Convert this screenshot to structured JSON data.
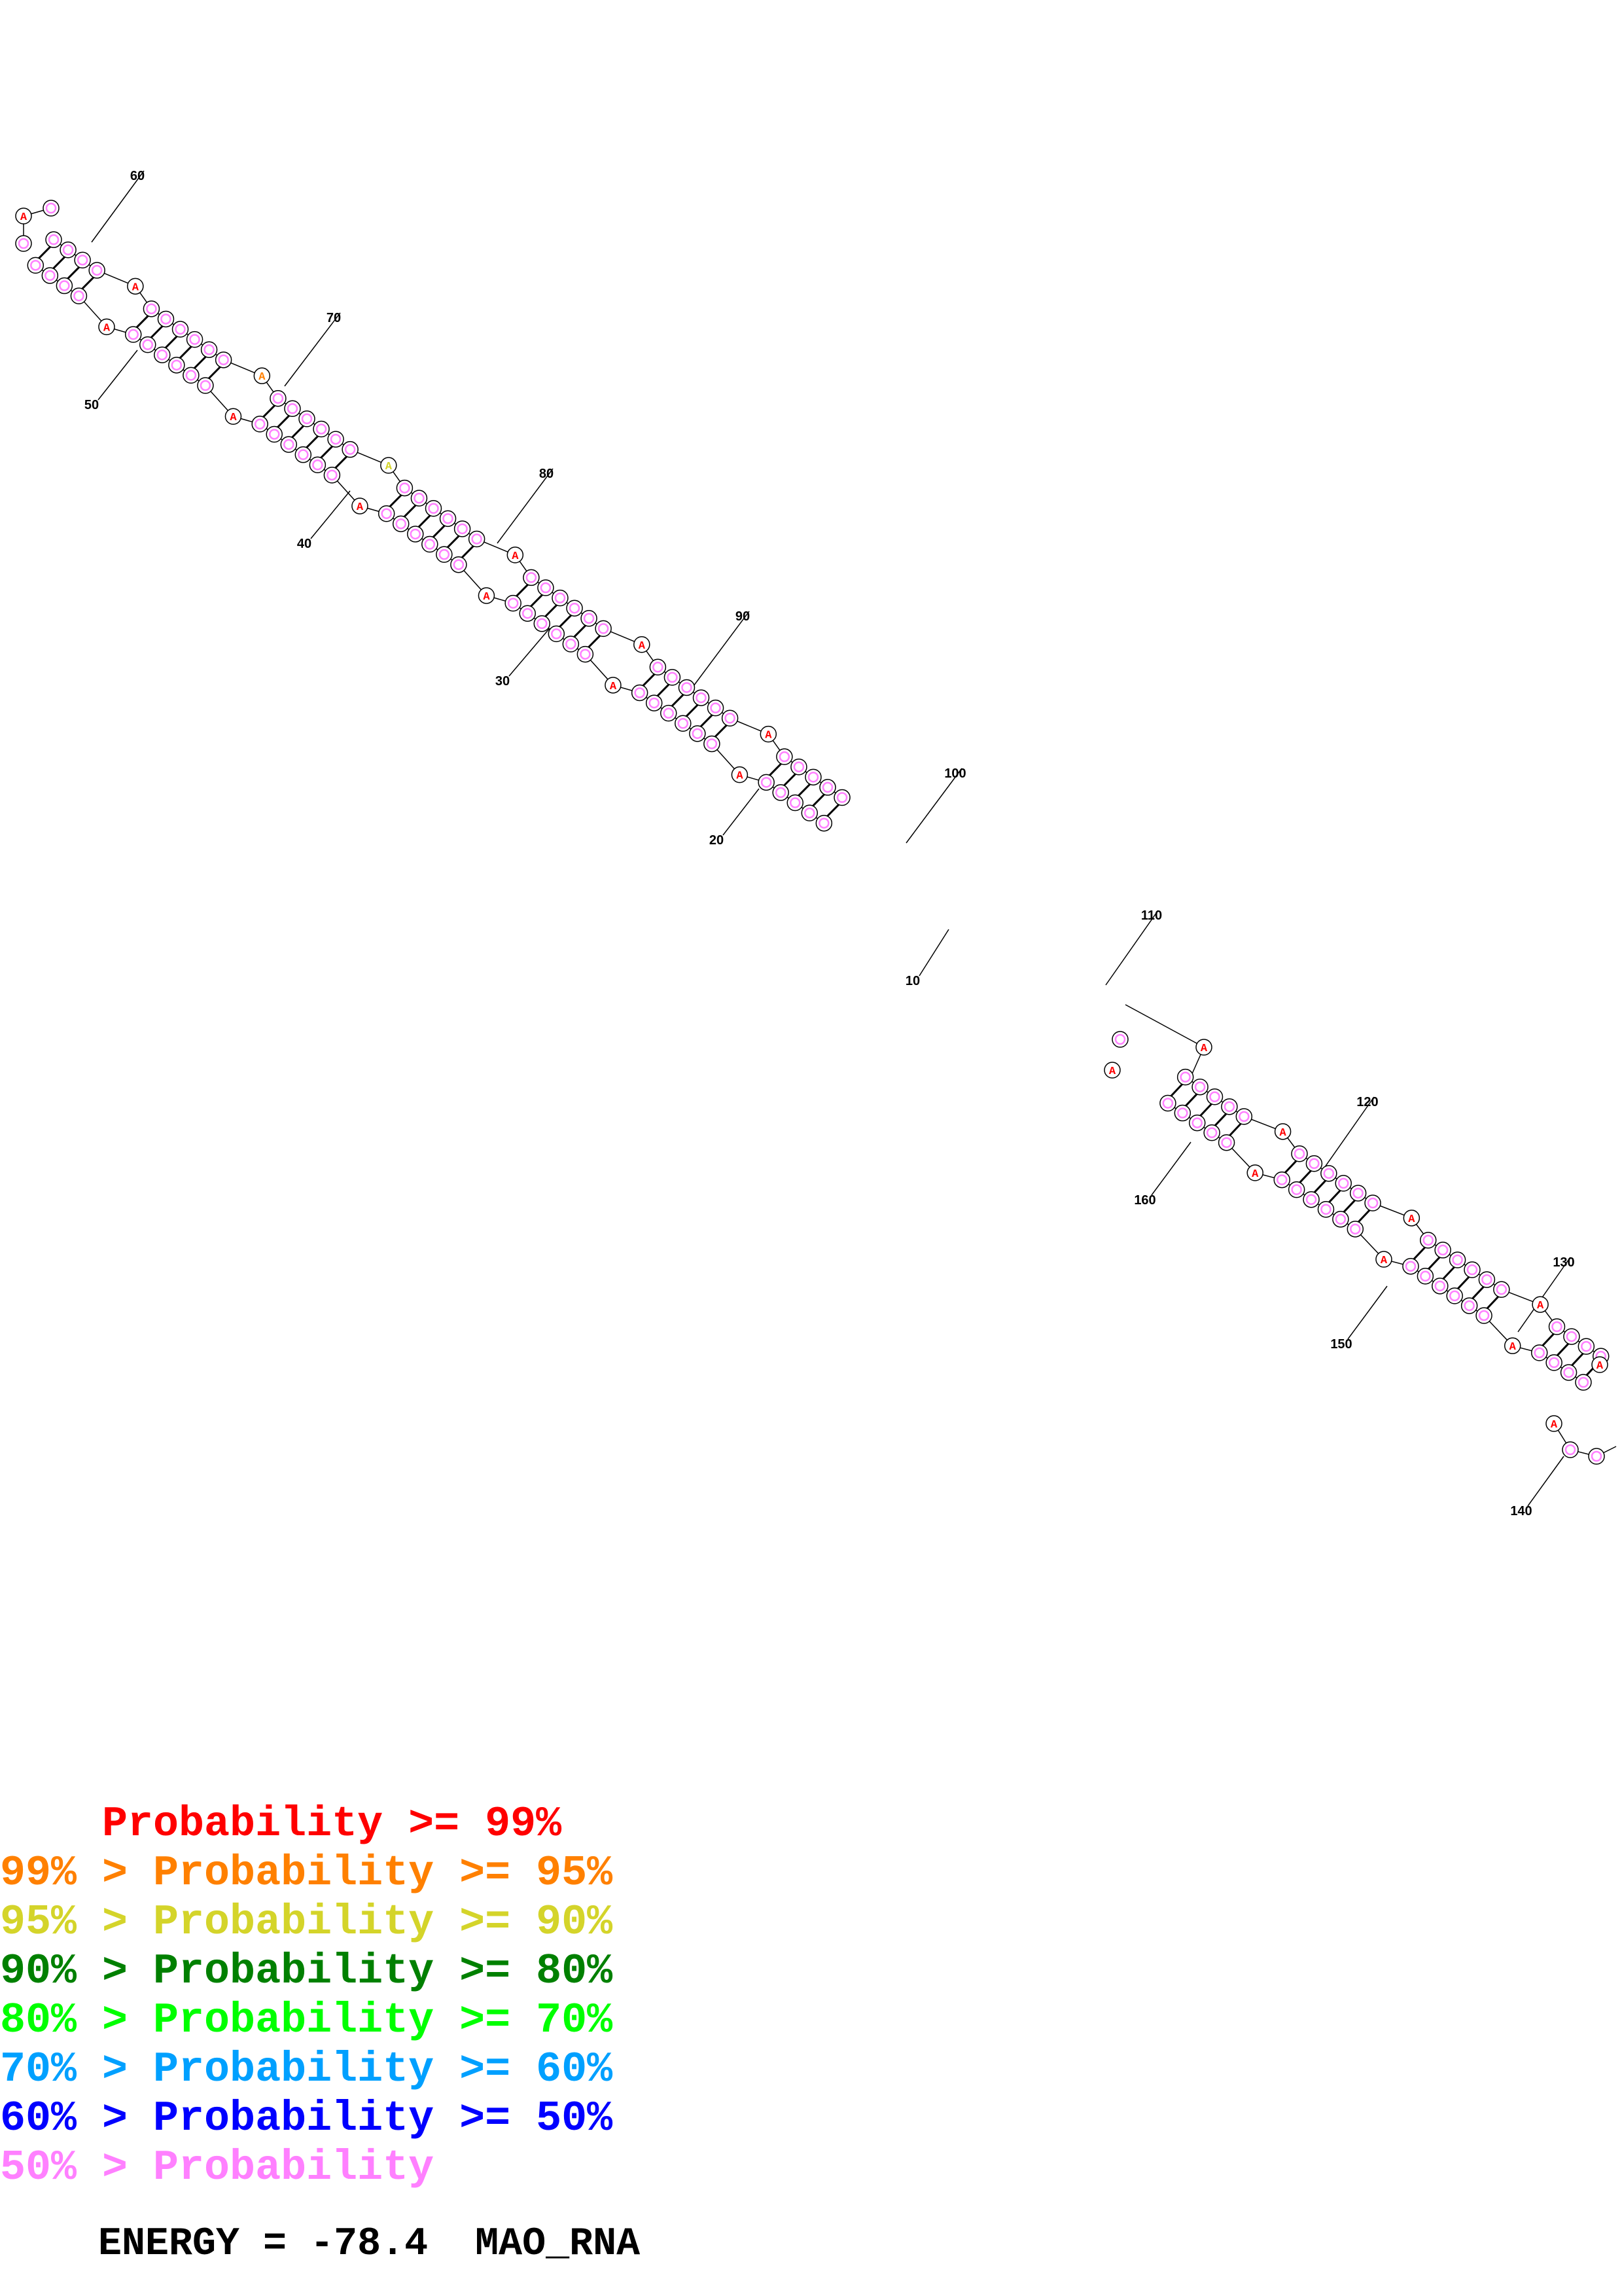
{
  "colors": {
    "red": "#ff0000",
    "orange": "#ff8000",
    "yellow": "#d4d42a",
    "darkgreen": "#008000",
    "green": "#00ff00",
    "cyan": "#00a0ff",
    "blue": "#0000ff",
    "pink": "#ff80ff"
  },
  "structure": {
    "tick_labels": [
      "10",
      "20",
      "30",
      "40",
      "50",
      "60",
      "70",
      "80",
      "90",
      "100",
      "110",
      "120",
      "130",
      "140",
      "150",
      "160"
    ]
  },
  "legend": {
    "lines": [
      {
        "color": "#ff0000",
        "text": "    Probability >= 99%"
      },
      {
        "color": "#ff8000",
        "text": "99% > Probability >= 95%"
      },
      {
        "color": "#d4d42a",
        "text": "95% > Probability >= 90%"
      },
      {
        "color": "#008000",
        "text": "90% > Probability >= 80%"
      },
      {
        "color": "#00ff00",
        "text": "80% > Probability >= 70%"
      },
      {
        "color": "#00a0ff",
        "text": "70% > Probability >= 60%"
      },
      {
        "color": "#0000ff",
        "text": "60% > Probability >= 50%"
      },
      {
        "color": "#ff80ff",
        "text": "50% > Probability"
      }
    ]
  },
  "footer": {
    "energy_label": "ENERGY = ",
    "energy_value": "-78.4",
    "name": "MAO_RNA"
  }
}
